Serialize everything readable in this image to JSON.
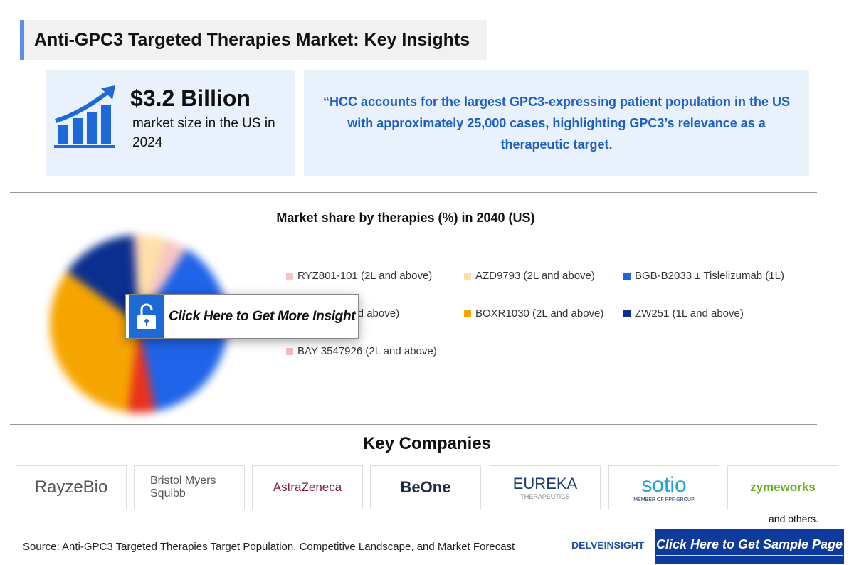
{
  "title": "Anti-GPC3 Targeted Therapies Market: Key Insights",
  "stat": {
    "value": "$3.2 Billion",
    "label": "market size in the US in 2024",
    "icon": "growth-chart-icon"
  },
  "quote": "“HCC accounts for the largest GPC3-expressing patient population in the US with approximately 25,000 cases, highlighting GPC3’s relevance as a therapeutic target.",
  "chart_data": {
    "type": "pie",
    "title": "Market share by therapies (%) in 2040 (US)",
    "legend": [
      {
        "label": "RYZ801-101 (2L and above)",
        "color": "#f8c4c4"
      },
      {
        "label": "AZD9793 (2L and above)",
        "color": "#fde0a8"
      },
      {
        "label": "BGB-B2033 ± Tislelizumab (1L)",
        "color": "#1f63e8"
      },
      {
        "label": "and above)",
        "color": "#e8321e"
      },
      {
        "label": "BOXR1030 (2L and above)",
        "color": "#f6a500"
      },
      {
        "label": "ZW251 (1L and above)",
        "color": "#0b2f8f"
      },
      {
        "label": "BAY 3547926 (2L and above)",
        "color": "#f3bcbc"
      }
    ],
    "values_estimated_blurred": [
      4,
      5,
      38,
      5,
      33,
      14,
      1
    ]
  },
  "overlay": {
    "label": "Click Here to Get More Insight",
    "icon": "unlock-icon"
  },
  "companies": {
    "title": "Key Companies",
    "logos": [
      "RayzeBio",
      "Bristol Myers Squibb",
      "AstraZeneca",
      "BeOne",
      "EUREKA",
      "sotio",
      "zymeworks"
    ],
    "others": "and others."
  },
  "eureka_sub": "THERAPEUTICS",
  "sotio_sub": "MEMBER OF PPF GROUP",
  "footer": {
    "source": "Source: Anti-GPC3 Targeted Therapies Target Population, Competitive Landscape, and Market Forecast",
    "brand": "DELVEINSIGHT",
    "cta": "Click Here to Get Sample Page"
  }
}
